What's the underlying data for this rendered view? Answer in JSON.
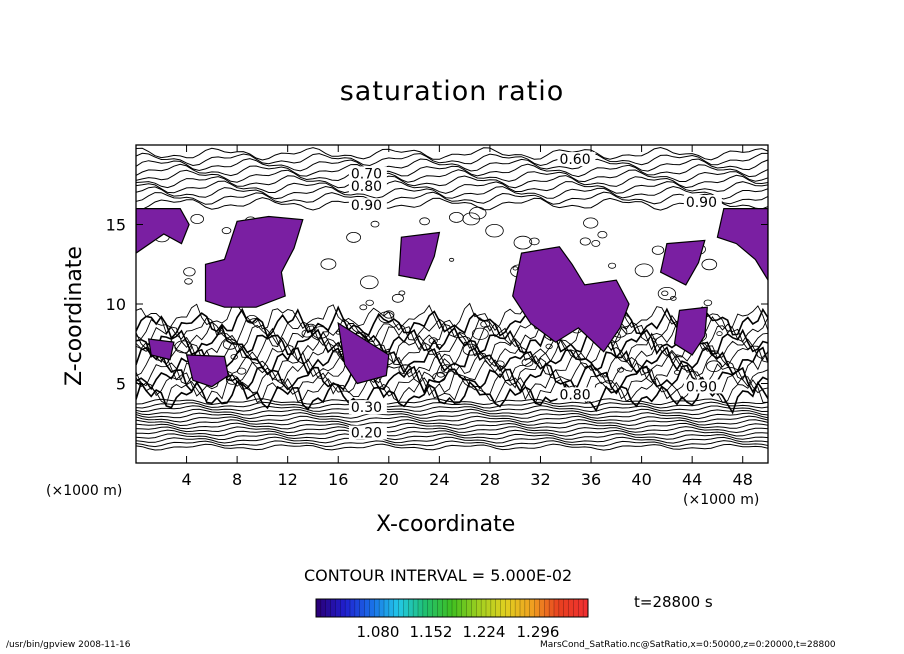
{
  "chart_data": {
    "type": "heatmap",
    "title": "saturation ratio",
    "xlabel": "X-coordinate",
    "ylabel": "Z-coordinate",
    "x_unit": "(×1000 m)",
    "y_unit": "(×1000 m)",
    "xlim": [
      0,
      50
    ],
    "ylim": [
      0,
      20
    ],
    "x_ticks": [
      4,
      8,
      12,
      16,
      20,
      24,
      28,
      32,
      36,
      40,
      44,
      48
    ],
    "y_ticks": [
      5,
      10,
      15
    ],
    "contour_labels": [
      {
        "text": "0.60",
        "x": 33.5,
        "z": 18.8
      },
      {
        "text": "0.70",
        "x": 17.0,
        "z": 17.9
      },
      {
        "text": "0.80",
        "x": 17.0,
        "z": 17.1
      },
      {
        "text": "0.90",
        "x": 17.0,
        "z": 15.9
      },
      {
        "text": "0.90",
        "x": 43.5,
        "z": 16.1
      },
      {
        "text": "0.80",
        "x": 33.5,
        "z": 4.0
      },
      {
        "text": "0.90",
        "x": 43.5,
        "z": 4.5
      },
      {
        "text": "0.30",
        "x": 17.0,
        "z": 3.2
      },
      {
        "text": "0.20",
        "x": 17.0,
        "z": 1.6
      }
    ],
    "shaded_threshold": 1.0,
    "shade_color": "#7a1fa2",
    "contour_interval_text": "CONTOUR INTERVAL = 5.000E-02",
    "colorbar": {
      "tick_labels": [
        "1.080",
        "1.152",
        "1.224",
        "1.296"
      ],
      "colors": [
        "#2a007a",
        "#2020d0",
        "#1a6fe8",
        "#22c8e8",
        "#20c070",
        "#40c020",
        "#a0d020",
        "#e0d020",
        "#f0a020",
        "#e84020",
        "#f03030"
      ]
    }
  },
  "texts": {
    "xunit_left": "(×1000 m)",
    "xunit_right": "(×1000 m)",
    "time": "t=28800  s",
    "footer_left": "/usr/bin/gpview   2008-11-16",
    "footer_right": "MarsCond_SatRatio.nc@SatRatio,x=0:50000,z=0:20000,t=28800"
  }
}
